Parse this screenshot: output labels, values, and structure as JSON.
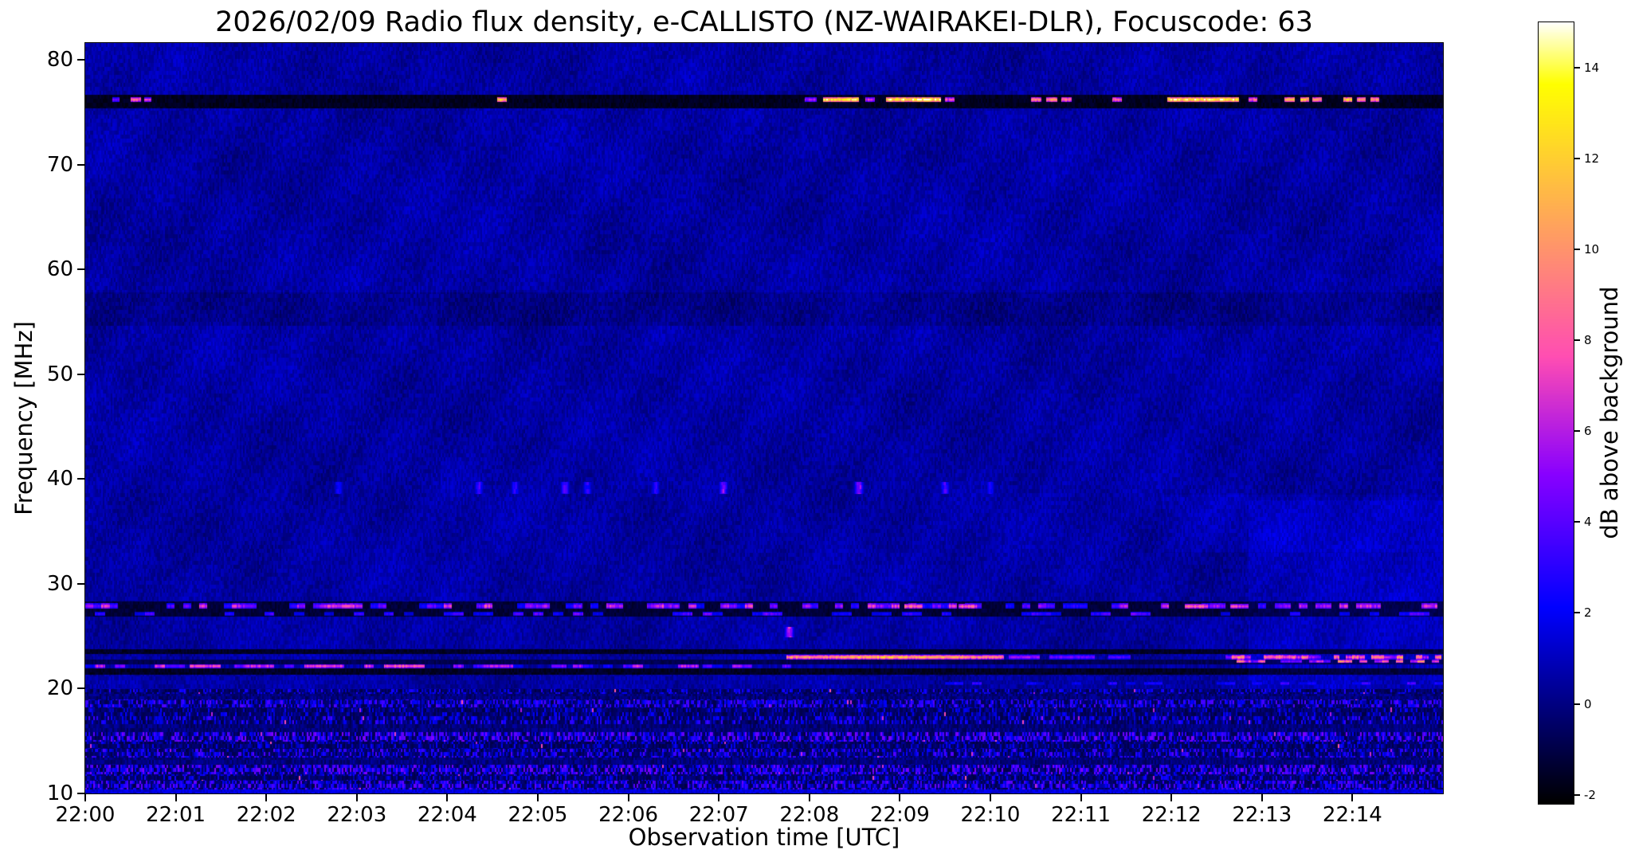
{
  "chart_data": {
    "type": "heatmap",
    "title": "2026/02/09  Radio flux density, e-CALLISTO (NZ-WAIRAKEI-DLR), Focuscode: 63",
    "xlabel": "Observation time [UTC]",
    "ylabel": "Frequency [MHz]",
    "colorbar_label": "dB above background",
    "x_ticks": [
      "22:00",
      "22:01",
      "22:02",
      "22:03",
      "22:04",
      "22:05",
      "22:06",
      "22:07",
      "22:08",
      "22:09",
      "22:10",
      "22:11",
      "22:12",
      "22:13",
      "22:14"
    ],
    "x_range_minutes": [
      0,
      15
    ],
    "y_ticks": [
      80,
      70,
      60,
      50,
      40,
      30,
      20,
      10
    ],
    "y_range_mhz": [
      10,
      81.6
    ],
    "colorbar_ticks": [
      {
        "value": 14,
        "label": "14"
      },
      {
        "value": 12,
        "label": "12"
      },
      {
        "value": 10,
        "label": "10"
      },
      {
        "value": 8,
        "label": "8"
      },
      {
        "value": 6,
        "label": "6"
      },
      {
        "value": 4,
        "label": "4"
      },
      {
        "value": 2,
        "label": "2"
      },
      {
        "value": 0,
        "label": "0"
      },
      {
        "value": -2,
        "label": "-2"
      }
    ],
    "colorbar_range_db": [
      -2.2,
      15
    ],
    "grid": false,
    "legend": "none",
    "background_db": 0.55,
    "colormap": {
      "name": "gnuplot2",
      "stops": [
        [
          0.0,
          "#000000"
        ],
        [
          0.05,
          "#000033"
        ],
        [
          0.1,
          "#000066"
        ],
        [
          0.15,
          "#000099"
        ],
        [
          0.2,
          "#0000cc"
        ],
        [
          0.25,
          "#0000ff"
        ],
        [
          0.3,
          "#2800ff"
        ],
        [
          0.35,
          "#5000ff"
        ],
        [
          0.4,
          "#7800ff"
        ],
        [
          0.42,
          "#8800ff"
        ],
        [
          0.46,
          "#a714eb"
        ],
        [
          0.5,
          "#c729d6"
        ],
        [
          0.54,
          "#e73dc2"
        ],
        [
          0.57,
          "#ff4db3"
        ],
        [
          0.6,
          "#ff5ca3"
        ],
        [
          0.65,
          "#ff758a"
        ],
        [
          0.7,
          "#ff8f70"
        ],
        [
          0.75,
          "#ffa857"
        ],
        [
          0.8,
          "#ffc23d"
        ],
        [
          0.85,
          "#ffdb24"
        ],
        [
          0.9,
          "#fff50a"
        ],
        [
          0.92,
          "#ffff00"
        ],
        [
          0.96,
          "#ffff80"
        ],
        [
          1.0,
          "#ffffff"
        ]
      ]
    },
    "features": [
      {
        "name": "rfi-band-76mhz-black",
        "kind": "black_band",
        "f_low": 75.4,
        "f_high": 76.65,
        "db": -2.0
      },
      {
        "name": "rfi-bursts-76mhz",
        "kind": "bright_line",
        "f_low": 75.95,
        "f_high": 76.45,
        "segments": [
          [
            0.3,
            0.38,
            5
          ],
          [
            0.5,
            0.62,
            9
          ],
          [
            0.65,
            0.73,
            7
          ],
          [
            4.55,
            4.66,
            13
          ],
          [
            7.95,
            8.08,
            6
          ],
          [
            8.15,
            8.55,
            14.5
          ],
          [
            8.62,
            8.72,
            7
          ],
          [
            8.85,
            9.45,
            15
          ],
          [
            9.5,
            9.6,
            8
          ],
          [
            10.45,
            10.56,
            10
          ],
          [
            10.62,
            10.74,
            11
          ],
          [
            10.78,
            10.9,
            10
          ],
          [
            11.35,
            11.45,
            9
          ],
          [
            11.95,
            12.75,
            14.5
          ],
          [
            12.85,
            12.95,
            9
          ],
          [
            13.25,
            13.36,
            12
          ],
          [
            13.42,
            13.52,
            13
          ],
          [
            13.56,
            13.66,
            11
          ],
          [
            13.9,
            14.0,
            13
          ],
          [
            14.05,
            14.15,
            12
          ],
          [
            14.2,
            14.3,
            11
          ]
        ]
      },
      {
        "name": "dim-band-56mhz",
        "kind": "offset_band",
        "f_low": 54.6,
        "f_high": 57.8,
        "delta": -0.45
      },
      {
        "name": "speckles-39mhz",
        "kind": "dots",
        "f_low": 38.6,
        "f_high": 39.7,
        "dots": [
          [
            2.8,
            2.5
          ],
          [
            4.35,
            3.5
          ],
          [
            4.75,
            3.0
          ],
          [
            5.3,
            4.0
          ],
          [
            5.55,
            3.0
          ],
          [
            6.3,
            3.0
          ],
          [
            7.05,
            5.0
          ],
          [
            8.55,
            5.5
          ],
          [
            9.5,
            3.5
          ],
          [
            10.0,
            2.5
          ]
        ]
      },
      {
        "name": "dot-25mhz",
        "kind": "dots",
        "f_low": 24.9,
        "f_high": 25.9,
        "dots": [
          [
            7.78,
            7.0
          ]
        ]
      },
      {
        "name": "rfi-band-28mhz-black",
        "kind": "black_band",
        "f_low": 26.9,
        "f_high": 28.3,
        "db": -1.6
      },
      {
        "name": "rfi-dashes-28mhz",
        "kind": "dash_line",
        "f_low": 27.6,
        "f_high": 28.15,
        "t0": 0,
        "t1": 15,
        "period": 0.09,
        "duty": 0.55,
        "db_min": 2.5,
        "db_max": 8,
        "seed": 101
      },
      {
        "name": "rfi-dashes-27mhz",
        "kind": "dash_line",
        "f_low": 26.95,
        "f_high": 27.3,
        "t0": 0,
        "t1": 15,
        "period": 0.11,
        "duty": 0.3,
        "db_min": 1.5,
        "db_max": 5,
        "seed": 505
      },
      {
        "name": "rfi-strong-28mhz",
        "kind": "bright_line",
        "f_low": 27.6,
        "f_high": 28.1,
        "segments": [
          [
            9.05,
            9.25,
            9
          ],
          [
            9.65,
            9.85,
            8.5
          ],
          [
            12.15,
            12.4,
            9
          ],
          [
            12.65,
            12.85,
            8
          ]
        ]
      },
      {
        "name": "rfi-black-23p5mhz",
        "kind": "black_band",
        "f_low": 23.3,
        "f_high": 23.75,
        "db": -1.9
      },
      {
        "name": "rfi-line-23mhz",
        "kind": "bright_line",
        "f_low": 22.8,
        "f_high": 23.2,
        "segments": [
          [
            7.75,
            8.35,
            11
          ],
          [
            8.35,
            9.1,
            12.5
          ],
          [
            9.1,
            9.75,
            12
          ],
          [
            9.75,
            10.15,
            10.5
          ],
          [
            10.2,
            10.55,
            6
          ],
          [
            10.65,
            11.15,
            5
          ],
          [
            11.3,
            11.55,
            4.5
          ]
        ]
      },
      {
        "name": "rfi-dashes-23mhz-late",
        "kind": "dash_line",
        "f_low": 22.8,
        "f_high": 23.2,
        "t0": 12.6,
        "t1": 15,
        "period": 0.07,
        "duty": 0.6,
        "db_min": 5,
        "db_max": 11,
        "seed": 303
      },
      {
        "name": "rfi-gap-22p5mhz",
        "kind": "black_band",
        "f_low": 22.35,
        "f_high": 22.78,
        "db": -1.2
      },
      {
        "name": "rfi-dashes-22p5mhz-late",
        "kind": "dash_line",
        "f_low": 22.45,
        "f_high": 22.75,
        "t0": 12.7,
        "t1": 15,
        "period": 0.08,
        "duty": 0.55,
        "db_min": 4,
        "db_max": 10,
        "seed": 404
      },
      {
        "name": "rfi-dashes-22mhz",
        "kind": "dash_line",
        "f_low": 21.95,
        "f_high": 22.35,
        "t0": 0,
        "t1": 7.8,
        "period": 0.11,
        "duty": 0.5,
        "db_min": 2,
        "db_max": 8,
        "seed": 202
      },
      {
        "name": "rfi-bright-22mhz",
        "kind": "bright_line",
        "f_low": 21.95,
        "f_high": 22.35,
        "segments": [
          [
            1.15,
            1.5,
            8
          ],
          [
            2.5,
            2.85,
            8
          ],
          [
            3.3,
            3.75,
            9
          ],
          [
            4.4,
            4.62,
            6.5
          ],
          [
            5.15,
            5.32,
            6
          ],
          [
            6.55,
            6.78,
            7
          ]
        ]
      },
      {
        "name": "rfi-black-21p5mhz",
        "kind": "black_band",
        "f_low": 21.35,
        "f_high": 21.9,
        "db": -1.9
      },
      {
        "name": "rfi-dashes-20p5mhz",
        "kind": "dash_line",
        "f_low": 20.35,
        "f_high": 20.65,
        "t0": 9.5,
        "t1": 15,
        "period": 0.1,
        "duty": 0.4,
        "db_min": 1.5,
        "db_max": 4,
        "seed": 606
      },
      {
        "name": "haze-right-low",
        "kind": "offset_region",
        "f_low": 19.5,
        "f_high": 38.0,
        "t0": 12.85,
        "t1": 15,
        "delta": 0.4
      },
      {
        "name": "haze-right-mid",
        "kind": "offset_region",
        "f_low": 33.0,
        "f_high": 38.5,
        "t0": 11.9,
        "t1": 15,
        "delta": 0.3
      },
      {
        "name": "noise-floor-stripes",
        "kind": "stripes",
        "f_low": 10.0,
        "f_high": 19.95,
        "stripes": [
          {
            "f_low": 19.5,
            "f_high": 19.95,
            "style": "sparse",
            "density": 0.35,
            "db_min": 0,
            "db_max": 3,
            "seed": 10
          },
          {
            "f_low": 18.95,
            "f_high": 19.5,
            "style": "dark"
          },
          {
            "f_low": 18.2,
            "f_high": 18.95,
            "style": "speckle",
            "density": 0.55,
            "db_min": 0.5,
            "db_max": 4,
            "seed": 11
          },
          {
            "f_low": 17.35,
            "f_high": 18.2,
            "style": "sparse",
            "density": 0.3,
            "db_min": 0,
            "db_max": 2.5,
            "seed": 12
          },
          {
            "f_low": 16.6,
            "f_high": 17.35,
            "style": "speckle",
            "density": 0.45,
            "db_min": 0,
            "db_max": 3.5,
            "seed": 13
          },
          {
            "f_low": 15.85,
            "f_high": 16.6,
            "style": "dark"
          },
          {
            "f_low": 14.95,
            "f_high": 15.85,
            "style": "speckle",
            "density": 0.6,
            "db_min": 0.5,
            "db_max": 5,
            "seed": 14
          },
          {
            "f_low": 14.25,
            "f_high": 14.95,
            "style": "sparse",
            "density": 0.3,
            "db_min": 0,
            "db_max": 2.5,
            "seed": 15
          },
          {
            "f_low": 13.45,
            "f_high": 14.25,
            "style": "speckle",
            "density": 0.5,
            "db_min": 0,
            "db_max": 4,
            "seed": 16
          },
          {
            "f_low": 12.75,
            "f_high": 13.45,
            "style": "dark"
          },
          {
            "f_low": 11.85,
            "f_high": 12.75,
            "style": "speckle",
            "density": 0.6,
            "db_min": 0.5,
            "db_max": 5,
            "seed": 17
          },
          {
            "f_low": 11.25,
            "f_high": 11.85,
            "style": "sparse",
            "density": 0.35,
            "db_min": 0,
            "db_max": 3,
            "seed": 18
          },
          {
            "f_low": 10.35,
            "f_high": 11.25,
            "style": "speckle",
            "density": 0.55,
            "db_min": 0.5,
            "db_max": 4.5,
            "seed": 19
          },
          {
            "f_low": 10.0,
            "f_high": 10.35,
            "style": "solid_blue",
            "db": 1.5
          }
        ]
      }
    ]
  },
  "colors": {
    "frame": "#000000",
    "page_background": "#ffffff",
    "text": "#000000"
  }
}
